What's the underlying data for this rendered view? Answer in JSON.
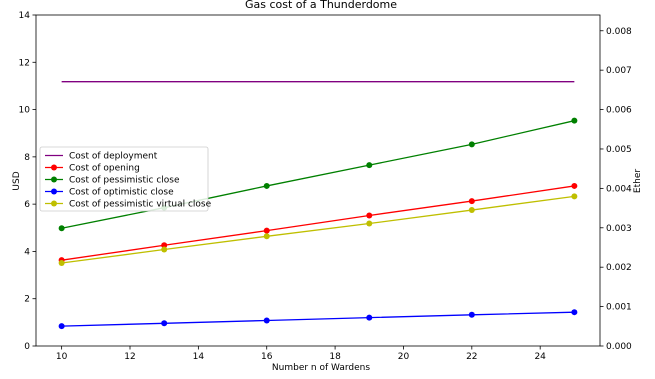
{
  "chart_data": {
    "type": "line",
    "title": "Gas cost of a Thunderdome",
    "xlabel": "Number n of Wardens",
    "ylabel": "USD",
    "y2label": "Ether",
    "x": [
      10,
      13,
      16,
      19,
      22,
      25
    ],
    "xlim": [
      9.25,
      25.75
    ],
    "ylim": [
      0,
      14
    ],
    "y2lim": [
      0,
      0.0084
    ],
    "xticks": [
      "10",
      "12",
      "14",
      "16",
      "18",
      "20",
      "22",
      "24"
    ],
    "yticks": [
      "0",
      "2",
      "4",
      "6",
      "8",
      "10",
      "12",
      "14"
    ],
    "y2ticks": [
      "0.000",
      "0.001",
      "0.002",
      "0.003",
      "0.004",
      "0.005",
      "0.006",
      "0.007",
      "0.008"
    ],
    "grid": false,
    "legend_position": "center-left",
    "series": [
      {
        "name": "Cost of deployment",
        "color": "#800080",
        "marker": false,
        "values": [
          11.18,
          11.18,
          11.18,
          11.18,
          11.18,
          11.18
        ]
      },
      {
        "name": "Cost of opening",
        "color": "#ff0000",
        "marker": true,
        "values": [
          3.63,
          4.26,
          4.88,
          5.52,
          6.13,
          6.77
        ]
      },
      {
        "name": "Cost of pessimistic close",
        "color": "#008000",
        "marker": true,
        "values": [
          4.98,
          5.85,
          6.77,
          7.65,
          8.53,
          9.53
        ]
      },
      {
        "name": "Cost of optimistic close",
        "color": "#0000ff",
        "marker": true,
        "values": [
          0.84,
          0.96,
          1.08,
          1.2,
          1.32,
          1.43
        ]
      },
      {
        "name": "Cost of pessimistic virtual close",
        "color": "#bfbf00",
        "marker": true,
        "values": [
          3.51,
          4.08,
          4.64,
          5.18,
          5.75,
          6.33
        ]
      }
    ]
  }
}
